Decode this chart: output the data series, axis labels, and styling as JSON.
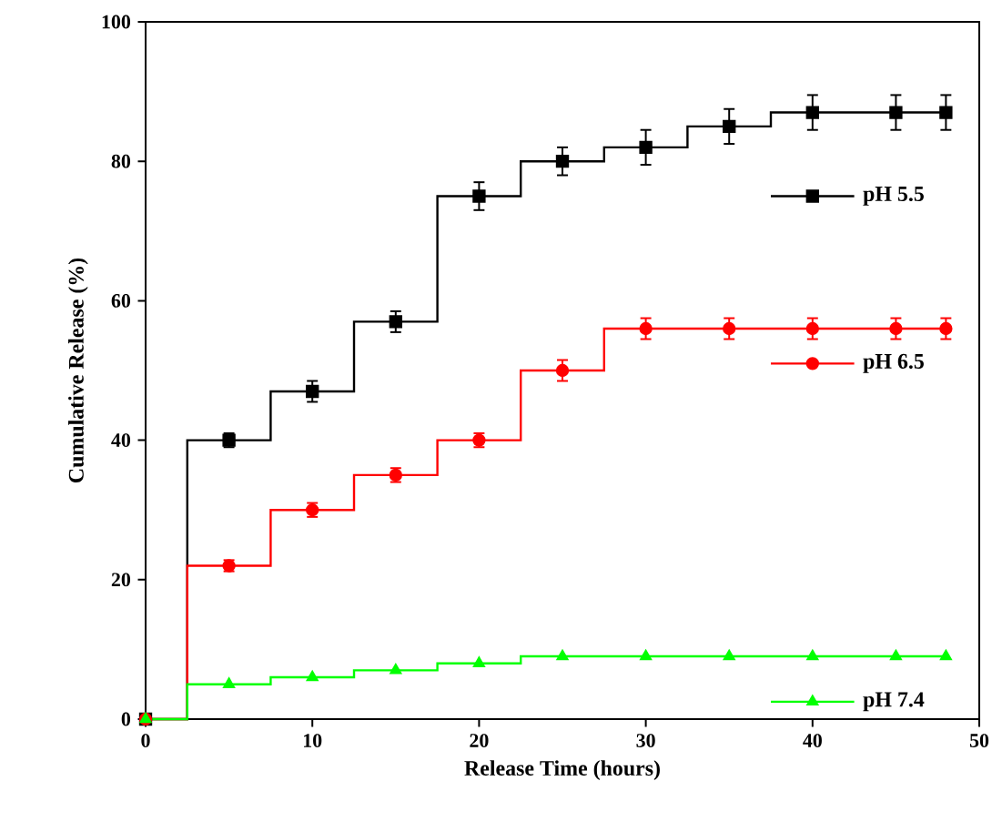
{
  "chart_data": {
    "type": "step",
    "xlabel": "Release Time (hours)",
    "ylabel": "Cumulative Release (%)",
    "x": [
      0,
      5,
      10,
      15,
      20,
      25,
      30,
      35,
      40,
      45,
      48
    ],
    "series": [
      {
        "name": "pH 5.5",
        "color": "#000000",
        "marker": "square",
        "values": [
          0,
          40,
          47,
          57,
          75,
          80,
          82,
          85,
          87,
          87,
          87
        ],
        "errors": [
          null,
          1,
          1.5,
          1.5,
          2,
          2,
          2.5,
          2.5,
          2.5,
          2.5,
          2.5
        ]
      },
      {
        "name": "pH 6.5",
        "color": "#ff0000",
        "marker": "circle",
        "values": [
          0,
          22,
          30,
          35,
          40,
          50,
          56,
          56,
          56,
          56,
          56
        ],
        "errors": [
          null,
          0.8,
          1,
          1,
          1,
          1.5,
          1.5,
          1.5,
          1.5,
          1.5,
          1.5
        ]
      },
      {
        "name": "pH 7.4",
        "color": "#00ff00",
        "marker": "triangle",
        "values": [
          0,
          5,
          6,
          7,
          8,
          9,
          9,
          9,
          9,
          9,
          9
        ]
      }
    ],
    "xlim": [
      0,
      50
    ],
    "ylim": [
      0,
      100
    ],
    "xticks": [
      0,
      10,
      20,
      30,
      40,
      50
    ],
    "yticks": [
      0,
      20,
      40,
      60,
      80,
      100
    ],
    "legend": "right",
    "grid": false,
    "line_style": "solid"
  }
}
